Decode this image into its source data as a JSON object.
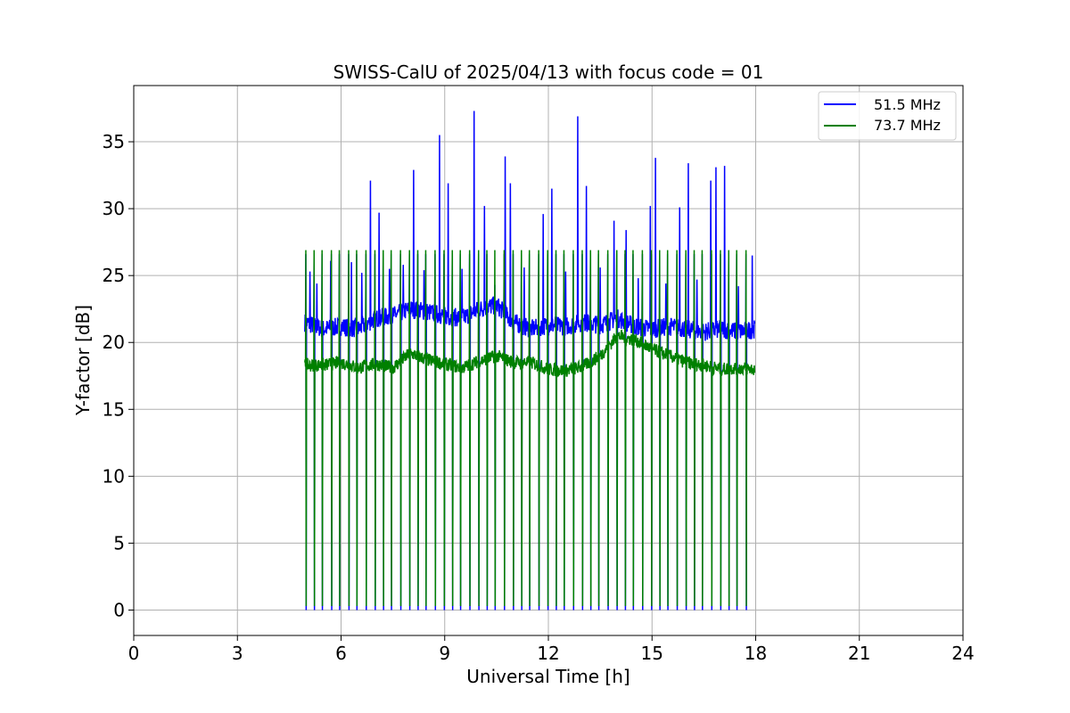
{
  "chart_data": {
    "type": "line",
    "title": "SWISS-CalU of 2025/04/13 with focus code = 01",
    "xlabel": "Universal Time [h]",
    "ylabel": "Y-factor [dB]",
    "xlim": [
      0,
      24
    ],
    "ylim": [
      -1.9,
      39.2
    ],
    "x_ticks": [
      0,
      3,
      6,
      9,
      12,
      15,
      18,
      21,
      24
    ],
    "y_ticks": [
      0,
      5,
      10,
      15,
      20,
      25,
      30,
      35
    ],
    "grid": true,
    "legend_position": "top-right",
    "series_colors": {
      "51.5 MHz": "#0000ff",
      "73.7 MHz": "#008000"
    },
    "series": [
      {
        "name": "51.5 MHz",
        "color": "#0000ff",
        "baseline_points": [
          [
            4.95,
            21.5
          ],
          [
            5.5,
            21.0
          ],
          [
            6.0,
            21.2
          ],
          [
            6.5,
            21.0
          ],
          [
            7.0,
            21.8
          ],
          [
            7.5,
            22.0
          ],
          [
            8.0,
            22.5
          ],
          [
            8.5,
            22.3
          ],
          [
            9.0,
            22.0
          ],
          [
            9.5,
            21.8
          ],
          [
            10.0,
            22.5
          ],
          [
            10.5,
            22.8
          ],
          [
            11.0,
            21.5
          ],
          [
            11.5,
            21.0
          ],
          [
            12.0,
            21.3
          ],
          [
            12.5,
            21.2
          ],
          [
            13.0,
            21.5
          ],
          [
            13.5,
            21.3
          ],
          [
            14.0,
            21.8
          ],
          [
            14.5,
            21.2
          ],
          [
            15.0,
            21.0
          ],
          [
            15.5,
            21.2
          ],
          [
            16.0,
            21.0
          ],
          [
            16.5,
            20.8
          ],
          [
            17.0,
            21.0
          ],
          [
            17.5,
            20.8
          ],
          [
            17.98,
            21.0
          ]
        ],
        "peaks": [
          [
            5.1,
            25.3
          ],
          [
            5.3,
            24.4
          ],
          [
            5.7,
            26.1
          ],
          [
            6.3,
            26.0
          ],
          [
            6.6,
            25.2
          ],
          [
            6.85,
            32.1
          ],
          [
            7.1,
            29.7
          ],
          [
            7.4,
            25.5
          ],
          [
            7.8,
            25.8
          ],
          [
            8.1,
            32.9
          ],
          [
            8.4,
            25.4
          ],
          [
            8.85,
            35.5
          ],
          [
            9.1,
            31.9
          ],
          [
            9.5,
            25.5
          ],
          [
            9.85,
            37.3
          ],
          [
            10.15,
            30.2
          ],
          [
            10.45,
            24.3
          ],
          [
            10.75,
            33.9
          ],
          [
            10.9,
            31.9
          ],
          [
            11.3,
            25.6
          ],
          [
            11.85,
            29.6
          ],
          [
            12.1,
            31.5
          ],
          [
            12.5,
            25.3
          ],
          [
            12.85,
            36.9
          ],
          [
            13.1,
            31.7
          ],
          [
            13.5,
            25.6
          ],
          [
            13.9,
            29.1
          ],
          [
            14.25,
            28.4
          ],
          [
            14.6,
            24.8
          ],
          [
            14.95,
            30.2
          ],
          [
            15.1,
            33.8
          ],
          [
            15.4,
            24.4
          ],
          [
            15.8,
            30.1
          ],
          [
            16.05,
            33.4
          ],
          [
            16.3,
            24.7
          ],
          [
            16.7,
            32.1
          ],
          [
            16.85,
            33.1
          ],
          [
            17.1,
            33.2
          ],
          [
            17.5,
            24.2
          ],
          [
            17.9,
            26.5
          ]
        ]
      },
      {
        "name": "73.7 MHz",
        "color": "#008000",
        "baseline_points": [
          [
            4.95,
            18.3
          ],
          [
            5.5,
            18.3
          ],
          [
            6.0,
            18.5
          ],
          [
            6.5,
            18.1
          ],
          [
            7.0,
            18.4
          ],
          [
            7.5,
            18.1
          ],
          [
            8.0,
            19.2
          ],
          [
            8.5,
            18.7
          ],
          [
            9.0,
            18.4
          ],
          [
            9.5,
            18.1
          ],
          [
            10.0,
            18.6
          ],
          [
            10.5,
            19.0
          ],
          [
            11.0,
            18.5
          ],
          [
            11.5,
            18.5
          ],
          [
            12.0,
            18.0
          ],
          [
            12.5,
            17.9
          ],
          [
            13.0,
            18.2
          ],
          [
            13.5,
            19.0
          ],
          [
            14.0,
            20.5
          ],
          [
            14.5,
            20.2
          ],
          [
            15.0,
            19.5
          ],
          [
            15.5,
            19.0
          ],
          [
            16.0,
            18.5
          ],
          [
            16.5,
            18.3
          ],
          [
            17.0,
            18.0
          ],
          [
            17.5,
            18.1
          ],
          [
            17.98,
            18.0
          ]
        ],
        "cal_times": [
          4.98,
          5.22,
          5.45,
          5.72,
          5.95,
          6.22,
          6.45,
          6.72,
          6.98,
          7.22,
          7.45,
          7.72,
          7.98,
          8.22,
          8.45,
          8.72,
          8.98,
          9.22,
          9.45,
          9.72,
          9.98,
          10.22,
          10.45,
          10.72,
          10.98,
          11.22,
          11.45,
          11.72,
          11.98,
          12.22,
          12.45,
          12.72,
          12.98,
          13.22,
          13.45,
          13.72,
          13.98,
          14.22,
          14.45,
          14.72,
          14.98,
          15.22,
          15.45,
          15.72,
          15.98,
          16.22,
          16.45,
          16.72,
          16.98,
          17.22,
          17.45,
          17.72
        ],
        "cal_high": 26.9,
        "cal_low": 0.3
      }
    ]
  }
}
